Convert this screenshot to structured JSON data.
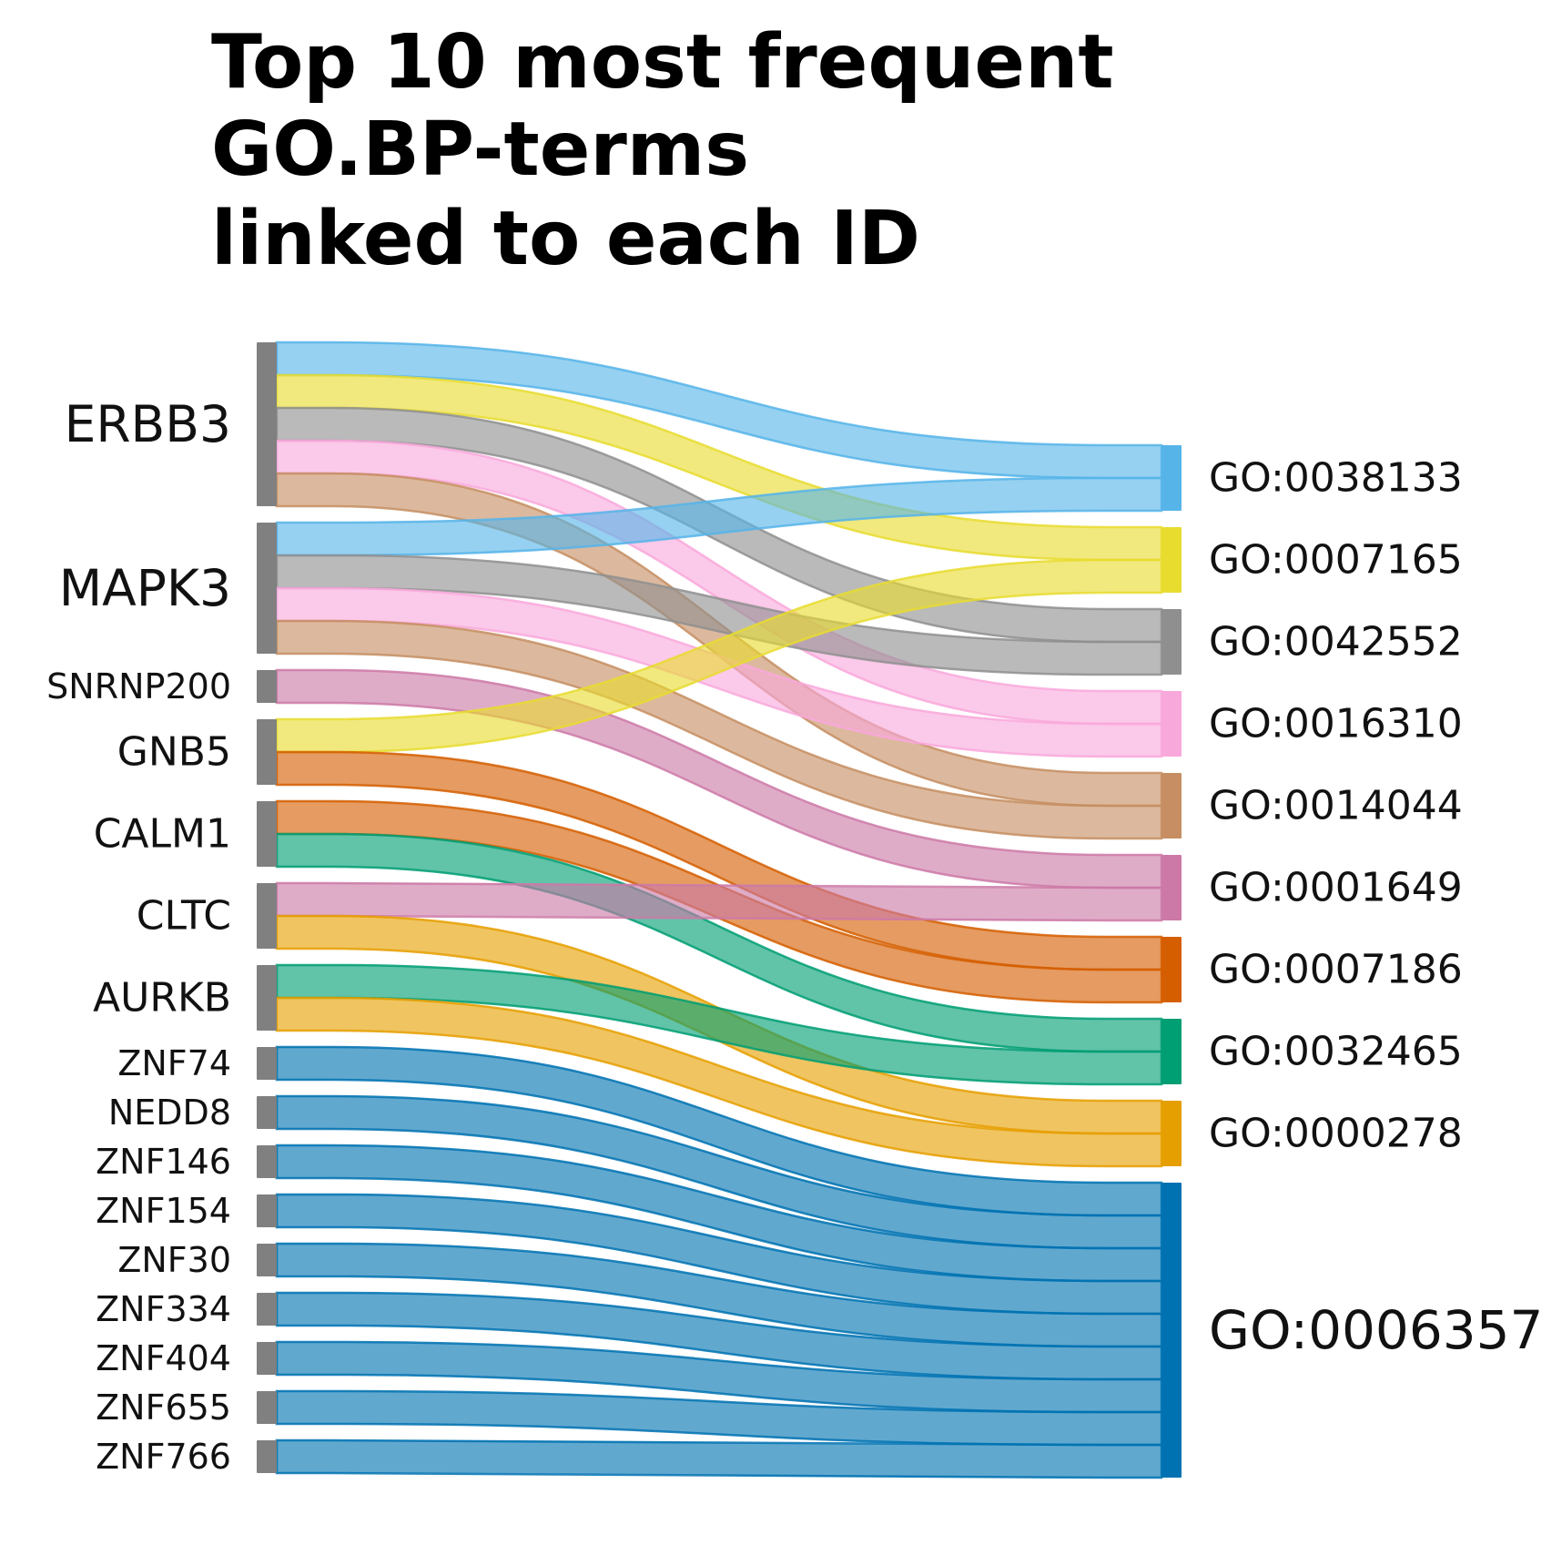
{
  "chart_data": {
    "type": "sankey",
    "title_lines": [
      "Top 10 most frequent",
      "GO.BP-terms",
      "linked to each ID"
    ],
    "sources": [
      "ERBB3",
      "MAPK3",
      "SNRNP200",
      "GNB5",
      "CALM1",
      "CLTC",
      "AURKB",
      "ZNF74",
      "NEDD8",
      "ZNF146",
      "ZNF154",
      "ZNF30",
      "ZNF334",
      "ZNF404",
      "ZNF655",
      "ZNF766"
    ],
    "targets": [
      "GO:0038133",
      "GO:0007165",
      "GO:0042552",
      "GO:0016310",
      "GO:0014044",
      "GO:0001649",
      "GO:0007186",
      "GO:0032465",
      "GO:0000278",
      "GO:0006357"
    ],
    "target_colors": {
      "GO:0038133": "#56b4e9",
      "GO:0007165": "#e8dc2f",
      "GO:0042552": "#8f8f8f",
      "GO:0016310": "#f9a8dc",
      "GO:0014044": "#c68e62",
      "GO:0001649": "#cc79a7",
      "GO:0007186": "#d55e00",
      "GO:0032465": "#009e73",
      "GO:0000278": "#e69f00",
      "GO:0006357": "#0072b2"
    },
    "source_node_color": "#808080",
    "links": [
      {
        "source": "ERBB3",
        "target": "GO:0038133",
        "value": 1
      },
      {
        "source": "ERBB3",
        "target": "GO:0007165",
        "value": 1
      },
      {
        "source": "ERBB3",
        "target": "GO:0042552",
        "value": 1
      },
      {
        "source": "ERBB3",
        "target": "GO:0016310",
        "value": 1
      },
      {
        "source": "ERBB3",
        "target": "GO:0014044",
        "value": 1
      },
      {
        "source": "MAPK3",
        "target": "GO:0038133",
        "value": 1
      },
      {
        "source": "MAPK3",
        "target": "GO:0042552",
        "value": 1
      },
      {
        "source": "MAPK3",
        "target": "GO:0016310",
        "value": 1
      },
      {
        "source": "MAPK3",
        "target": "GO:0014044",
        "value": 1
      },
      {
        "source": "SNRNP200",
        "target": "GO:0001649",
        "value": 1
      },
      {
        "source": "GNB5",
        "target": "GO:0007165",
        "value": 1
      },
      {
        "source": "GNB5",
        "target": "GO:0007186",
        "value": 1
      },
      {
        "source": "CALM1",
        "target": "GO:0007186",
        "value": 1
      },
      {
        "source": "CALM1",
        "target": "GO:0032465",
        "value": 1
      },
      {
        "source": "CLTC",
        "target": "GO:0001649",
        "value": 1
      },
      {
        "source": "CLTC",
        "target": "GO:0000278",
        "value": 1
      },
      {
        "source": "AURKB",
        "target": "GO:0032465",
        "value": 1
      },
      {
        "source": "AURKB",
        "target": "GO:0000278",
        "value": 1
      },
      {
        "source": "ZNF74",
        "target": "GO:0006357",
        "value": 1
      },
      {
        "source": "NEDD8",
        "target": "GO:0006357",
        "value": 1
      },
      {
        "source": "ZNF146",
        "target": "GO:0006357",
        "value": 1
      },
      {
        "source": "ZNF154",
        "target": "GO:0006357",
        "value": 1
      },
      {
        "source": "ZNF30",
        "target": "GO:0006357",
        "value": 1
      },
      {
        "source": "ZNF334",
        "target": "GO:0006357",
        "value": 1
      },
      {
        "source": "ZNF404",
        "target": "GO:0006357",
        "value": 1
      },
      {
        "source": "ZNF655",
        "target": "GO:0006357",
        "value": 1
      },
      {
        "source": "ZNF766",
        "target": "GO:0006357",
        "value": 1
      }
    ]
  }
}
